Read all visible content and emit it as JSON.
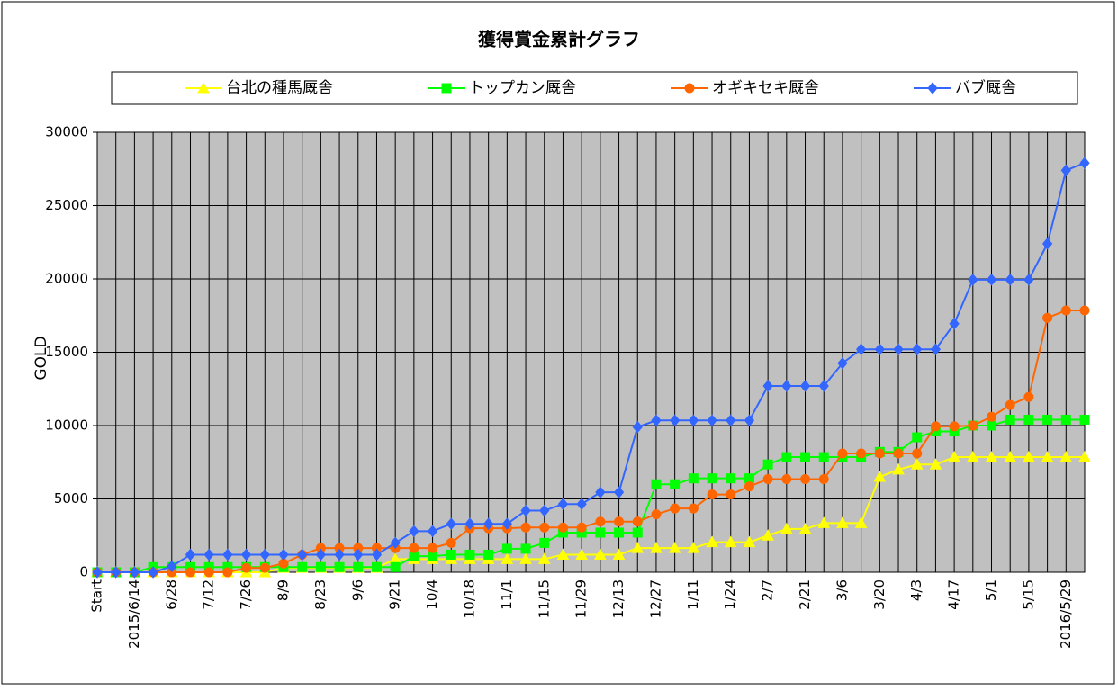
{
  "chart_data": {
    "type": "line",
    "title": "獲得賞金累計グラフ",
    "y_label": "GOLD",
    "categories": [
      "Start",
      null,
      "2015/6/14",
      null,
      "6/28",
      null,
      "7/12",
      null,
      "7/26",
      null,
      "8/9",
      null,
      "8/23",
      null,
      "9/6",
      null,
      "9/21",
      null,
      "10/4",
      null,
      "10/18",
      null,
      "11/1",
      null,
      "11/15",
      null,
      "11/29",
      null,
      "12/13",
      null,
      "12/27",
      null,
      "1/11",
      null,
      "1/24",
      null,
      "2/7",
      null,
      "2/21",
      null,
      "3/6",
      null,
      "3/20",
      null,
      "4/3",
      null,
      "4/17",
      null,
      "5/1",
      null,
      "5/15",
      null,
      "2016/5/29",
      null
    ],
    "series": [
      {
        "name": "台北の種馬厩舎",
        "color": "#ffff00",
        "marker": "triangle",
        "values": [
          0,
          0,
          0,
          0,
          0,
          0,
          0,
          0,
          0,
          0,
          300,
          300,
          300,
          300,
          300,
          300,
          900,
          900,
          900,
          900,
          900,
          900,
          900,
          900,
          900,
          1200,
          1200,
          1200,
          1200,
          1650,
          1650,
          1650,
          1650,
          2050,
          2050,
          2050,
          2500,
          2950,
          2950,
          3350,
          3350,
          3350,
          6500,
          7000,
          7350,
          7350,
          7850,
          7850,
          7850,
          7850,
          7850,
          7850,
          7850,
          7850
        ]
      },
      {
        "name": "トップカン厩舎",
        "color": "#00ff00",
        "marker": "square",
        "values": [
          0,
          0,
          0,
          350,
          350,
          350,
          350,
          350,
          350,
          350,
          350,
          350,
          350,
          350,
          350,
          350,
          350,
          1100,
          1100,
          1200,
          1200,
          1200,
          1600,
          1600,
          2000,
          2700,
          2700,
          2700,
          2700,
          2700,
          6000,
          6000,
          6400,
          6400,
          6400,
          6400,
          7350,
          7850,
          7850,
          7850,
          7850,
          7850,
          8200,
          8200,
          9200,
          9600,
          9600,
          10000,
          10000,
          10400,
          10400,
          10400,
          10400,
          10400
        ]
      },
      {
        "name": "オギキセキ厩舎",
        "color": "#ff6600",
        "marker": "circle",
        "values": [
          0,
          0,
          0,
          0,
          0,
          0,
          0,
          0,
          300,
          300,
          600,
          1200,
          1650,
          1650,
          1650,
          1650,
          1650,
          1650,
          1650,
          2000,
          3000,
          3000,
          3000,
          3050,
          3050,
          3050,
          3050,
          3450,
          3450,
          3450,
          3950,
          4350,
          4350,
          5300,
          5300,
          5850,
          6350,
          6350,
          6350,
          6350,
          8100,
          8100,
          8100,
          8100,
          8100,
          9950,
          9950,
          10000,
          10600,
          11400,
          11950,
          17350,
          17850,
          17850
        ]
      },
      {
        "name": "バブ厩舎",
        "color": "#3366ff",
        "marker": "diamond",
        "values": [
          0,
          0,
          0,
          0,
          400,
          1200,
          1200,
          1200,
          1200,
          1200,
          1200,
          1200,
          1200,
          1200,
          1200,
          1200,
          2000,
          2800,
          2800,
          3300,
          3300,
          3300,
          3300,
          4200,
          4200,
          4650,
          4650,
          5450,
          5450,
          9900,
          10350,
          10350,
          10350,
          10350,
          10350,
          10350,
          12700,
          12700,
          12700,
          12700,
          14250,
          15200,
          15200,
          15200,
          15200,
          15200,
          16950,
          19950,
          19950,
          19950,
          19950,
          22400,
          27400,
          27900
        ]
      }
    ],
    "ylim": [
      0,
      30000
    ],
    "yticks": [
      0,
      5000,
      10000,
      15000,
      20000,
      25000,
      30000
    ],
    "grid": true,
    "background": "#c0c0c0",
    "legend": "top"
  }
}
